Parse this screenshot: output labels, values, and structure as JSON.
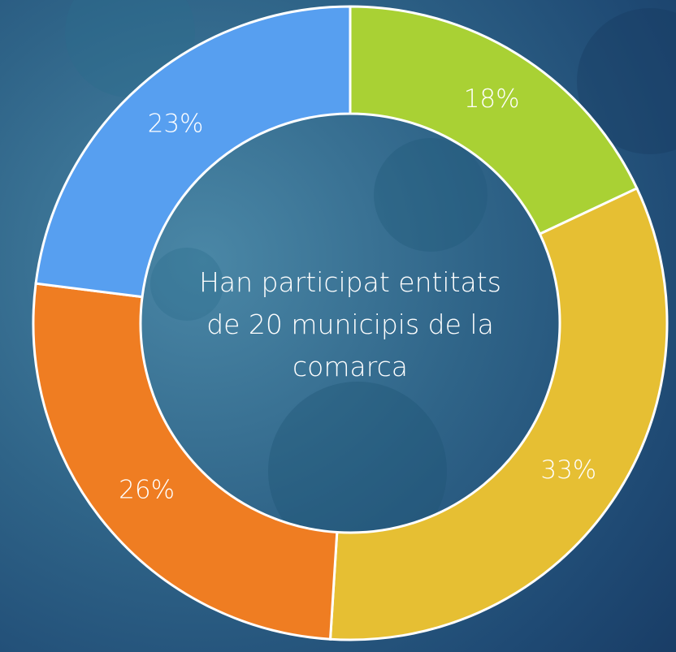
{
  "chart_data": {
    "type": "donut",
    "values": [
      18,
      33,
      26,
      23
    ],
    "value_labels": [
      "18%",
      "33%",
      "26%",
      "23%"
    ],
    "colors": [
      "#a9d134",
      "#e6bf33",
      "#ef7d22",
      "#579ff0"
    ],
    "annotation": "Han participat entitats de 20 municipis de la comarca"
  }
}
